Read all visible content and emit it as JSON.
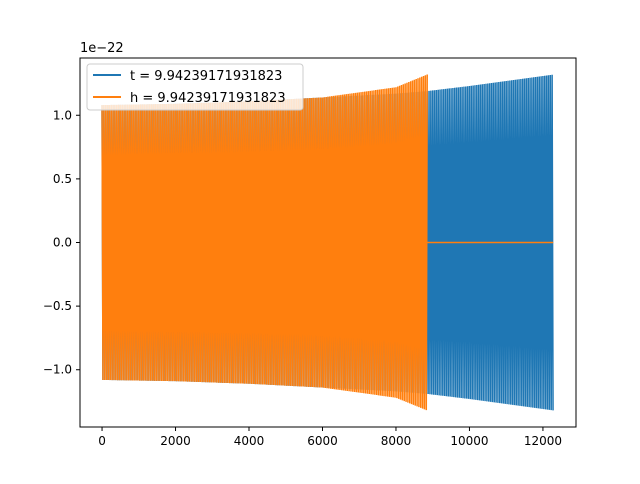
{
  "chart_data": {
    "type": "line",
    "title": "",
    "xlabel": "",
    "ylabel": "",
    "y_scale_label": "1e−22",
    "xlim": [
      -600,
      12900
    ],
    "ylim": [
      -1.45,
      1.45
    ],
    "xticks": [
      0,
      2000,
      4000,
      6000,
      8000,
      10000,
      12000
    ],
    "xtick_labels": [
      "0",
      "2000",
      "4000",
      "6000",
      "8000",
      "10000",
      "12000"
    ],
    "yticks": [
      -1.0,
      -0.5,
      0.0,
      0.5,
      1.0
    ],
    "ytick_labels": [
      "−1.0",
      "−0.5",
      "0.0",
      "0.5",
      "1.0"
    ],
    "grid": false,
    "legend_position": "top-left",
    "series": [
      {
        "name": "t = 9.94239171931823",
        "color": "#1f77b4",
        "style": "dense oscillation (filled envelope)",
        "x": [
          0,
          2000,
          4000,
          6000,
          8000,
          8850,
          10000,
          12280
        ],
        "upper": [
          1.08,
          1.09,
          1.11,
          1.14,
          1.17,
          1.19,
          1.23,
          1.32
        ],
        "lower": [
          -1.08,
          -1.09,
          -1.11,
          -1.14,
          -1.17,
          -1.19,
          -1.23,
          -1.32
        ]
      },
      {
        "name": "h = 9.94239171931823",
        "color": "#ff7f0e",
        "style": "dense oscillation (filled envelope), zero beyond end",
        "x": [
          0,
          2000,
          4000,
          6000,
          8000,
          8850
        ],
        "upper": [
          1.08,
          1.09,
          1.11,
          1.14,
          1.22,
          1.32
        ],
        "lower": [
          -1.08,
          -1.09,
          -1.11,
          -1.14,
          -1.22,
          -1.32
        ],
        "flat_zero_x": [
          8850,
          12280
        ]
      }
    ]
  }
}
